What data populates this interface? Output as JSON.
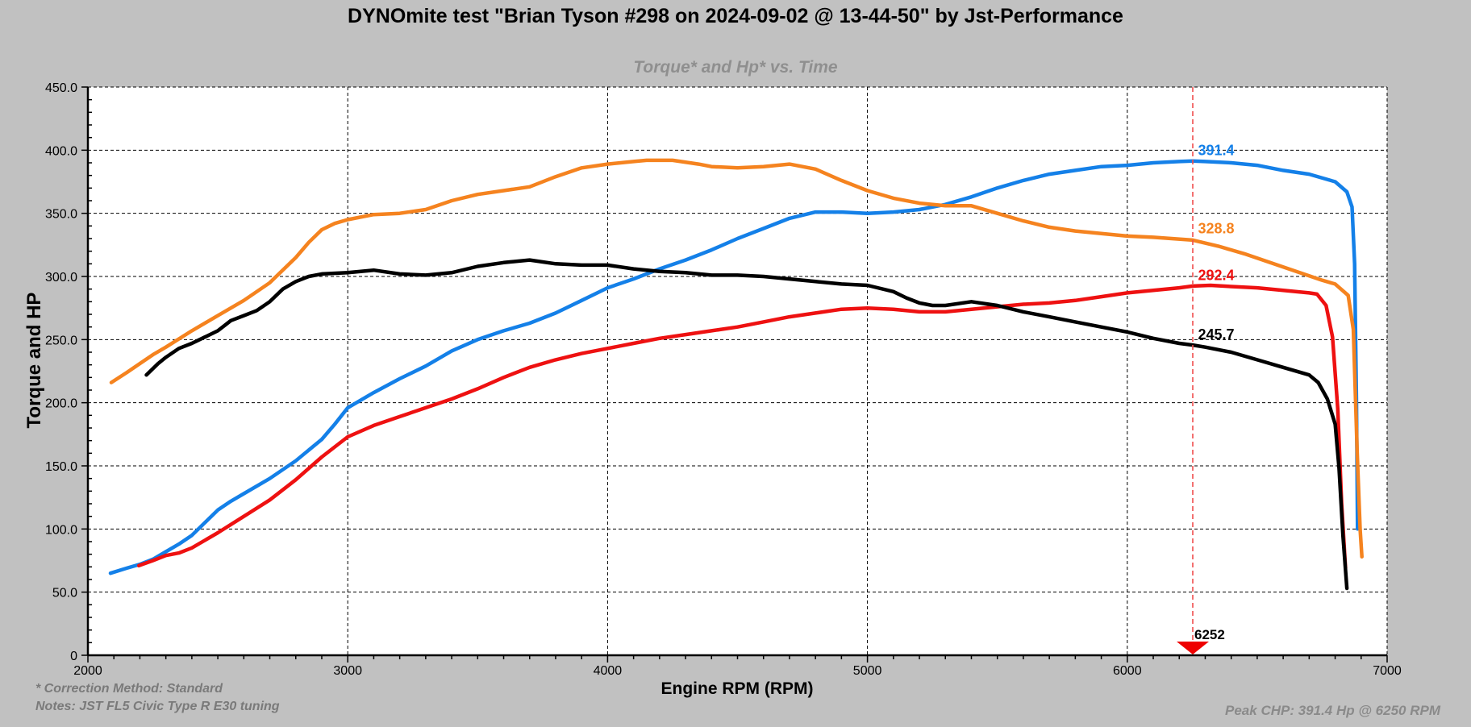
{
  "title": "DYNOmite test \"Brian Tyson #298 on 2024-09-02 @ 13-44-50\" by Jst-Performance",
  "footer": {
    "correction": "* Correction Method: Standard",
    "notes": "Notes: JST FL5 Civic Type R E30 tuning",
    "peak": "Peak CHP: 391.4 Hp @ 6250 RPM"
  },
  "chart_data": {
    "type": "line",
    "title": "Torque* and Hp* vs. Time",
    "xlabel": "Engine RPM (RPM)",
    "ylabel": "Torque and HP",
    "x_range": [
      2000,
      7000
    ],
    "y_range": [
      0,
      450
    ],
    "x_minor_step": 100,
    "y_minor_step": 10,
    "grid": {
      "style": "dashed",
      "color": "#000000"
    },
    "page_bg": "#c1c1c1",
    "plot_bg": "#ffffff",
    "x_ticks": [
      {
        "v": 2000,
        "label": "2000"
      },
      {
        "v": 3000,
        "label": "3000"
      },
      {
        "v": 4000,
        "label": "4000"
      },
      {
        "v": 5000,
        "label": "5000"
      },
      {
        "v": 6000,
        "label": "6000"
      },
      {
        "v": 7000,
        "label": "7000"
      }
    ],
    "y_ticks": [
      {
        "v": 0,
        "label": "0"
      },
      {
        "v": 50,
        "label": "50.0"
      },
      {
        "v": 100,
        "label": "100.0"
      },
      {
        "v": 150,
        "label": "150.0"
      },
      {
        "v": 200,
        "label": "200.0"
      },
      {
        "v": 250,
        "label": "250.0"
      },
      {
        "v": 300,
        "label": "300.0"
      },
      {
        "v": 350,
        "label": "350.0"
      },
      {
        "v": 400,
        "label": "400.0"
      },
      {
        "v": 450,
        "label": "450.0"
      }
    ],
    "cursor": {
      "rpm": 6252,
      "label": "6252",
      "line_color": "#f04f4f",
      "marker_color": "#ee0000"
    },
    "series": [
      {
        "name": "blue-hp-trace",
        "color": "#1480e8",
        "cursor_label": "391.4",
        "label_anchor": {
          "rpm": 6272,
          "value": 400
        },
        "points": [
          [
            2087,
            65
          ],
          [
            2150,
            69
          ],
          [
            2200,
            72
          ],
          [
            2250,
            76
          ],
          [
            2300,
            82
          ],
          [
            2350,
            88
          ],
          [
            2400,
            95
          ],
          [
            2450,
            105
          ],
          [
            2500,
            115
          ],
          [
            2550,
            122
          ],
          [
            2600,
            128
          ],
          [
            2700,
            140
          ],
          [
            2800,
            154
          ],
          [
            2900,
            171
          ],
          [
            2950,
            183
          ],
          [
            3000,
            196
          ],
          [
            3100,
            208
          ],
          [
            3200,
            219
          ],
          [
            3300,
            229
          ],
          [
            3400,
            241
          ],
          [
            3500,
            250
          ],
          [
            3600,
            257
          ],
          [
            3700,
            263
          ],
          [
            3800,
            271
          ],
          [
            3900,
            281
          ],
          [
            4000,
            291
          ],
          [
            4100,
            298
          ],
          [
            4200,
            306
          ],
          [
            4300,
            313
          ],
          [
            4400,
            321
          ],
          [
            4500,
            330
          ],
          [
            4600,
            338
          ],
          [
            4700,
            346
          ],
          [
            4800,
            351
          ],
          [
            4900,
            351
          ],
          [
            5000,
            350
          ],
          [
            5100,
            351
          ],
          [
            5200,
            353
          ],
          [
            5300,
            357
          ],
          [
            5400,
            363
          ],
          [
            5500,
            370
          ],
          [
            5600,
            376
          ],
          [
            5700,
            381
          ],
          [
            5800,
            384
          ],
          [
            5900,
            387
          ],
          [
            6000,
            388
          ],
          [
            6100,
            390
          ],
          [
            6200,
            391
          ],
          [
            6252,
            391.4
          ],
          [
            6300,
            391
          ],
          [
            6400,
            390
          ],
          [
            6500,
            388
          ],
          [
            6600,
            384
          ],
          [
            6700,
            381
          ],
          [
            6800,
            375
          ],
          [
            6845,
            367
          ],
          [
            6865,
            355
          ],
          [
            6875,
            310
          ],
          [
            6882,
            200
          ],
          [
            6886,
            100
          ]
        ]
      },
      {
        "name": "orange-torque-trace",
        "color": "#f5831f",
        "cursor_label": "328.8",
        "label_anchor": {
          "rpm": 6272,
          "value": 338
        },
        "points": [
          [
            2090,
            216
          ],
          [
            2150,
            224
          ],
          [
            2200,
            231
          ],
          [
            2250,
            238
          ],
          [
            2300,
            244
          ],
          [
            2400,
            257
          ],
          [
            2500,
            269
          ],
          [
            2600,
            281
          ],
          [
            2700,
            295
          ],
          [
            2800,
            315
          ],
          [
            2850,
            327
          ],
          [
            2900,
            337
          ],
          [
            2950,
            342
          ],
          [
            3000,
            345
          ],
          [
            3100,
            349
          ],
          [
            3200,
            350
          ],
          [
            3300,
            353
          ],
          [
            3400,
            360
          ],
          [
            3500,
            365
          ],
          [
            3600,
            368
          ],
          [
            3700,
            371
          ],
          [
            3800,
            379
          ],
          [
            3900,
            386
          ],
          [
            4000,
            389
          ],
          [
            4100,
            391
          ],
          [
            4150,
            392
          ],
          [
            4250,
            392
          ],
          [
            4350,
            389
          ],
          [
            4400,
            387
          ],
          [
            4500,
            386
          ],
          [
            4600,
            387
          ],
          [
            4700,
            389
          ],
          [
            4800,
            385
          ],
          [
            4900,
            376
          ],
          [
            5000,
            368
          ],
          [
            5100,
            362
          ],
          [
            5200,
            358
          ],
          [
            5300,
            356
          ],
          [
            5400,
            356
          ],
          [
            5500,
            350
          ],
          [
            5600,
            344
          ],
          [
            5700,
            339
          ],
          [
            5800,
            336
          ],
          [
            5900,
            334
          ],
          [
            6000,
            332
          ],
          [
            6100,
            331
          ],
          [
            6252,
            328.8
          ],
          [
            6350,
            324
          ],
          [
            6450,
            318
          ],
          [
            6550,
            311
          ],
          [
            6650,
            304
          ],
          [
            6750,
            297
          ],
          [
            6800,
            294
          ],
          [
            6850,
            285
          ],
          [
            6870,
            258
          ],
          [
            6885,
            160
          ],
          [
            6896,
            100
          ],
          [
            6903,
            78
          ]
        ]
      },
      {
        "name": "red-hp-trace",
        "color": "#ee1111",
        "cursor_label": "292.4",
        "label_anchor": {
          "rpm": 6272,
          "value": 301
        },
        "points": [
          [
            2196,
            71
          ],
          [
            2250,
            75
          ],
          [
            2300,
            79
          ],
          [
            2350,
            81
          ],
          [
            2400,
            85
          ],
          [
            2500,
            97
          ],
          [
            2600,
            110
          ],
          [
            2700,
            123
          ],
          [
            2800,
            139
          ],
          [
            2900,
            157
          ],
          [
            3000,
            173
          ],
          [
            3100,
            182
          ],
          [
            3200,
            189
          ],
          [
            3300,
            196
          ],
          [
            3400,
            203
          ],
          [
            3500,
            211
          ],
          [
            3600,
            220
          ],
          [
            3700,
            228
          ],
          [
            3800,
            234
          ],
          [
            3900,
            239
          ],
          [
            4000,
            243
          ],
          [
            4100,
            247
          ],
          [
            4200,
            251
          ],
          [
            4300,
            254
          ],
          [
            4400,
            257
          ],
          [
            4500,
            260
          ],
          [
            4600,
            264
          ],
          [
            4700,
            268
          ],
          [
            4800,
            271
          ],
          [
            4900,
            274
          ],
          [
            5000,
            275
          ],
          [
            5100,
            274
          ],
          [
            5200,
            272
          ],
          [
            5300,
            272
          ],
          [
            5400,
            274
          ],
          [
            5500,
            276
          ],
          [
            5600,
            278
          ],
          [
            5700,
            279
          ],
          [
            5800,
            281
          ],
          [
            5900,
            284
          ],
          [
            6000,
            287
          ],
          [
            6100,
            289
          ],
          [
            6200,
            291
          ],
          [
            6252,
            292.4
          ],
          [
            6320,
            293
          ],
          [
            6400,
            292
          ],
          [
            6500,
            291
          ],
          [
            6600,
            289
          ],
          [
            6700,
            287
          ],
          [
            6730,
            286
          ],
          [
            6765,
            277
          ],
          [
            6790,
            252
          ],
          [
            6810,
            195
          ],
          [
            6825,
            120
          ],
          [
            6840,
            69
          ]
        ]
      },
      {
        "name": "black-torque-trace",
        "color": "#000000",
        "cursor_label": "245.7",
        "label_anchor": {
          "rpm": 6272,
          "value": 254
        },
        "points": [
          [
            2225,
            222
          ],
          [
            2270,
            231
          ],
          [
            2300,
            236
          ],
          [
            2350,
            243
          ],
          [
            2400,
            247
          ],
          [
            2450,
            252
          ],
          [
            2500,
            257
          ],
          [
            2550,
            265
          ],
          [
            2600,
            269
          ],
          [
            2650,
            273
          ],
          [
            2700,
            280
          ],
          [
            2750,
            290
          ],
          [
            2800,
            296
          ],
          [
            2850,
            300
          ],
          [
            2900,
            302
          ],
          [
            3000,
            303
          ],
          [
            3100,
            305
          ],
          [
            3200,
            302
          ],
          [
            3300,
            301
          ],
          [
            3400,
            303
          ],
          [
            3500,
            308
          ],
          [
            3600,
            311
          ],
          [
            3700,
            313
          ],
          [
            3800,
            310
          ],
          [
            3900,
            309
          ],
          [
            4000,
            309
          ],
          [
            4100,
            306
          ],
          [
            4200,
            304
          ],
          [
            4300,
            303
          ],
          [
            4400,
            301
          ],
          [
            4500,
            301
          ],
          [
            4600,
            300
          ],
          [
            4700,
            298
          ],
          [
            4800,
            296
          ],
          [
            4900,
            294
          ],
          [
            5000,
            293
          ],
          [
            5100,
            288
          ],
          [
            5150,
            283
          ],
          [
            5200,
            279
          ],
          [
            5250,
            277
          ],
          [
            5300,
            277
          ],
          [
            5400,
            280
          ],
          [
            5500,
            277
          ],
          [
            5600,
            272
          ],
          [
            5700,
            268
          ],
          [
            5800,
            264
          ],
          [
            5900,
            260
          ],
          [
            6000,
            256
          ],
          [
            6100,
            251
          ],
          [
            6200,
            247
          ],
          [
            6252,
            245.7
          ],
          [
            6300,
            244
          ],
          [
            6400,
            240
          ],
          [
            6500,
            234
          ],
          [
            6600,
            228
          ],
          [
            6700,
            222
          ],
          [
            6735,
            216
          ],
          [
            6770,
            203
          ],
          [
            6800,
            183
          ],
          [
            6815,
            148
          ],
          [
            6830,
            95
          ],
          [
            6845,
            53
          ]
        ]
      }
    ]
  }
}
